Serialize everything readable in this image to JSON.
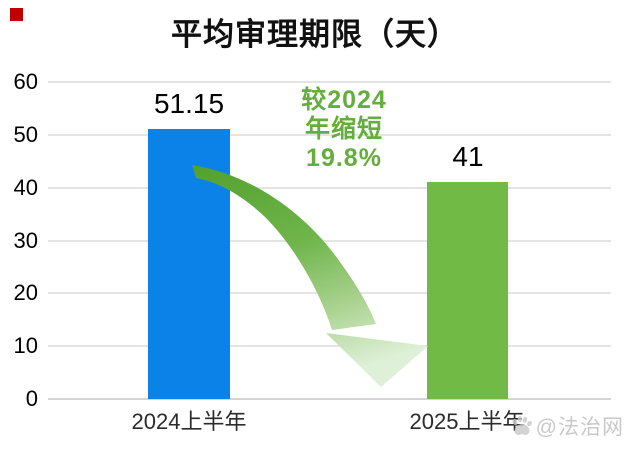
{
  "chart_data": {
    "type": "bar",
    "title": "平均审理期限（天）",
    "categories": [
      "2024上半年",
      "2025上半年"
    ],
    "values": [
      51.15,
      41
    ],
    "value_labels": [
      "51.15",
      "41"
    ],
    "bar_colors": [
      "#0a82e8",
      "#72ba46"
    ],
    "ylim": [
      0,
      60
    ],
    "yticks": [
      0,
      10,
      20,
      30,
      40,
      50,
      60
    ],
    "grid": true,
    "legend": "none",
    "annotation": {
      "lines": [
        "较2024",
        "年缩短",
        "19.8%"
      ],
      "color": "#63ae3c",
      "shape": "curved-down-arrow",
      "arrow_color_start": "#519f2b",
      "arrow_color_end": "#def0d7"
    },
    "watermark": "@法治网"
  },
  "colors": {
    "corner_mark_red": "#c00000",
    "gridline": "#e4e4e4",
    "watermark_gray": "#c9c9c9"
  }
}
